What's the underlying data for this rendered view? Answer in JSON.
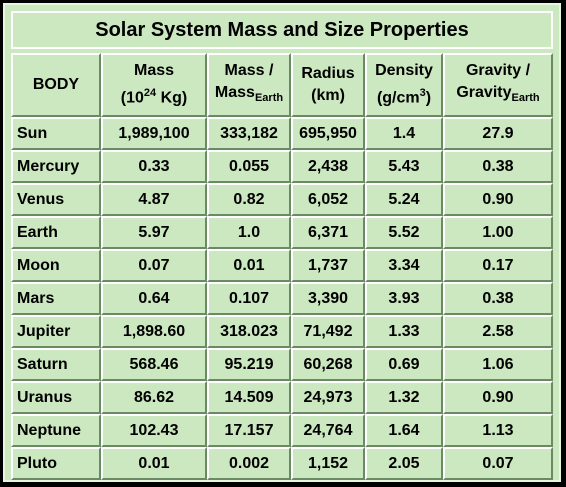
{
  "title": "Solar System Mass and Size Properties",
  "headers": {
    "body": "BODY",
    "mass": {
      "line1": "Mass",
      "line2_pre": "(10",
      "line2_sup": "24",
      "line2_post": " Kg)"
    },
    "mass_ratio": {
      "line1": "Mass /",
      "line2_pre": "Mass",
      "line2_sub": "Earth"
    },
    "radius": {
      "line1": "Radius",
      "line2": "(km)"
    },
    "density": {
      "line1": "Density",
      "line2_pre": "(g/cm",
      "line2_sup": "3",
      "line2_post": ")"
    },
    "gravity": {
      "line1": "Gravity /",
      "line2_pre": "Gravity",
      "line2_sub": "Earth"
    }
  },
  "rows": [
    {
      "body": "Sun",
      "mass": "1,989,100",
      "mass_ratio": "333,182",
      "radius": "695,950",
      "density": "1.4",
      "gravity": "27.9"
    },
    {
      "body": "Mercury",
      "mass": "0.33",
      "mass_ratio": "0.055",
      "radius": "2,438",
      "density": "5.43",
      "gravity": "0.38"
    },
    {
      "body": "Venus",
      "mass": "4.87",
      "mass_ratio": "0.82",
      "radius": "6,052",
      "density": "5.24",
      "gravity": "0.90"
    },
    {
      "body": "Earth",
      "mass": "5.97",
      "mass_ratio": "1.0",
      "radius": "6,371",
      "density": "5.52",
      "gravity": "1.00"
    },
    {
      "body": "Moon",
      "mass": "0.07",
      "mass_ratio": "0.01",
      "radius": "1,737",
      "density": "3.34",
      "gravity": "0.17"
    },
    {
      "body": "Mars",
      "mass": "0.64",
      "mass_ratio": "0.107",
      "radius": "3,390",
      "density": "3.93",
      "gravity": "0.38"
    },
    {
      "body": "Jupiter",
      "mass": "1,898.60",
      "mass_ratio": "318.023",
      "radius": "71,492",
      "density": "1.33",
      "gravity": "2.58"
    },
    {
      "body": "Saturn",
      "mass": "568.46",
      "mass_ratio": "95.219",
      "radius": "60,268",
      "density": "0.69",
      "gravity": "1.06"
    },
    {
      "body": "Uranus",
      "mass": "86.62",
      "mass_ratio": "14.509",
      "radius": "24,973",
      "density": "1.32",
      "gravity": "0.90"
    },
    {
      "body": "Neptune",
      "mass": "102.43",
      "mass_ratio": "17.157",
      "radius": "24,764",
      "density": "1.64",
      "gravity": "1.13"
    },
    {
      "body": "Pluto",
      "mass": "0.01",
      "mass_ratio": "0.002",
      "radius": "1,152",
      "density": "2.05",
      "gravity": "0.07"
    }
  ]
}
